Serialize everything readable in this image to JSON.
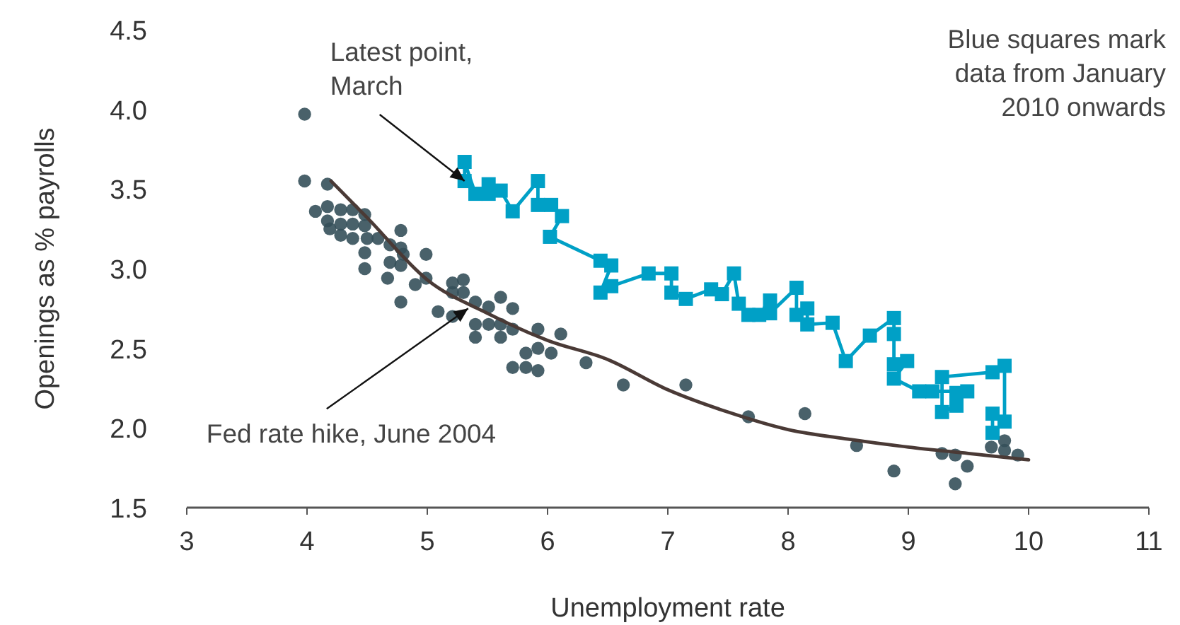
{
  "chart_data": {
    "type": "scatter",
    "xlabel": "Unemployment rate",
    "ylabel": "Openings as % payrolls",
    "xlim": [
      3,
      11
    ],
    "xticks": [
      3,
      4,
      5,
      6,
      7,
      8,
      9,
      10,
      11
    ],
    "ylim": [
      1.5,
      4.5
    ],
    "yticks": [
      {
        "value": 1.5,
        "label": "1.5"
      },
      {
        "value": 2,
        "label": "2.0"
      },
      {
        "value": 2.5,
        "label": "2.5"
      },
      {
        "value": 3,
        "label": "3.0"
      },
      {
        "value": 3.5,
        "label": "3.5"
      },
      {
        "value": 4,
        "label": "4.0"
      },
      {
        "value": 4.5,
        "label": "4.5"
      }
    ],
    "grid": false,
    "series": [
      {
        "marker": "circle",
        "color": "#35505a",
        "x": [
          3.98,
          3.98,
          4.17,
          4.07,
          4.17,
          4.28,
          4.38,
          4.48,
          4.17,
          4.28,
          4.38,
          4.48,
          4.19,
          4.28,
          4.38,
          4.5,
          4.48,
          4.59,
          4.69,
          4.78,
          4.78,
          4.8,
          4.69,
          4.48,
          4.67,
          4.78,
          4.99,
          4.9,
          4.99,
          4.78,
          5.21,
          5.3,
          5.21,
          5.3,
          5.09,
          5.21,
          5.4,
          5.51,
          5.61,
          5.71,
          5.4,
          5.51,
          5.61,
          5.71,
          5.4,
          5.61,
          5.92,
          6.11,
          5.82,
          5.92,
          6.03,
          5.71,
          5.82,
          5.92,
          6.32,
          6.63,
          7.15,
          7.67,
          8.14,
          8.57,
          8.88,
          9.28,
          9.39,
          9.39,
          9.49,
          9.69,
          9.8,
          9.8,
          9.91
        ],
        "values": [
          3.97,
          3.55,
          3.53,
          3.36,
          3.39,
          3.37,
          3.37,
          3.34,
          3.3,
          3.28,
          3.28,
          3.27,
          3.25,
          3.21,
          3.19,
          3.19,
          3.1,
          3.19,
          3.15,
          3.24,
          3.13,
          3.09,
          3.04,
          3.0,
          2.94,
          3.02,
          3.09,
          2.9,
          2.94,
          2.79,
          2.91,
          2.93,
          2.85,
          2.85,
          2.73,
          2.7,
          2.79,
          2.76,
          2.82,
          2.75,
          2.65,
          2.65,
          2.65,
          2.62,
          2.57,
          2.57,
          2.62,
          2.59,
          2.47,
          2.5,
          2.47,
          2.38,
          2.38,
          2.36,
          2.41,
          2.27,
          2.27,
          2.07,
          2.09,
          1.89,
          1.73,
          1.84,
          1.83,
          1.65,
          1.76,
          1.88,
          1.92,
          1.86,
          1.83
        ]
      },
      {
        "type": "line",
        "marker": "none",
        "line_style": "solid",
        "color": "#4a3a36",
        "x": [
          4.2,
          4.5,
          5,
          5.5,
          6,
          6.5,
          7,
          7.5,
          8,
          8.5,
          9,
          9.5,
          10
        ],
        "values": [
          3.55,
          3.32,
          2.93,
          2.72,
          2.55,
          2.43,
          2.24,
          2.1,
          1.99,
          1.93,
          1.88,
          1.84,
          1.8
        ]
      },
      {
        "type": "line",
        "marker": "square",
        "line_style": "solid",
        "color": "#00a0c6",
        "x": [
          9.7,
          9.7,
          9.8,
          9.8,
          9.7,
          9.28,
          9.28,
          9.4,
          9.4,
          9.49,
          9.2,
          9.09,
          8.88,
          8.99,
          8.88,
          8.88,
          8.88,
          8.68,
          8.48,
          8.37,
          8.16,
          8.16,
          8.07,
          8.07,
          7.85,
          7.85,
          7.76,
          7.67,
          7.59,
          7.55,
          7.45,
          7.36,
          7.15,
          7.03,
          7.03,
          6.84,
          6.53,
          6.44,
          6.53,
          6.44,
          6.02,
          6.12,
          6.03,
          5.92,
          5.92,
          5.71,
          5.61,
          5.51,
          5.51,
          5.4,
          5.31,
          5.31
        ],
        "values": [
          1.97,
          2.09,
          2.04,
          2.39,
          2.35,
          2.32,
          2.1,
          2.14,
          2.22,
          2.23,
          2.23,
          2.23,
          2.31,
          2.42,
          2.4,
          2.59,
          2.69,
          2.58,
          2.42,
          2.66,
          2.65,
          2.75,
          2.71,
          2.88,
          2.72,
          2.8,
          2.71,
          2.71,
          2.78,
          2.97,
          2.84,
          2.87,
          2.81,
          2.85,
          2.97,
          2.97,
          2.89,
          2.85,
          3.02,
          3.05,
          3.2,
          3.33,
          3.4,
          3.4,
          3.55,
          3.36,
          3.49,
          3.47,
          3.53,
          3.47,
          3.67,
          3.55
        ]
      }
    ],
    "annotations": [
      {
        "text": "Latest point,\nMarch",
        "x": 5.31,
        "y": 3.55
      },
      {
        "text": "Fed rate hike, June 2004",
        "x": 5.34,
        "y": 2.75
      },
      "Blue squares mark\ndata from January\n2010 onwards"
    ]
  }
}
